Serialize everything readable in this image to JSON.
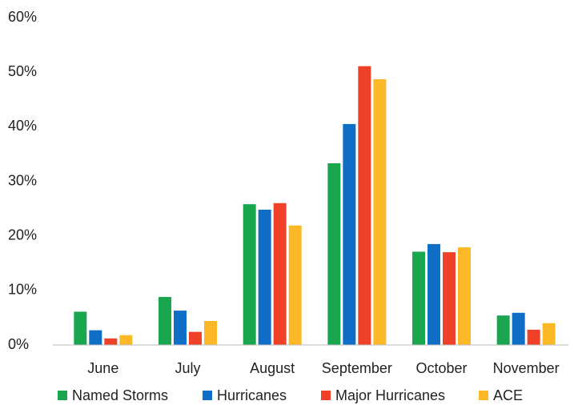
{
  "chart_data": {
    "type": "bar",
    "categories": [
      "June",
      "July",
      "August",
      "September",
      "October",
      "November"
    ],
    "series": [
      {
        "name": "Named Storms",
        "color": "#1aa64f",
        "values": [
          6.1,
          8.8,
          25.8,
          33.3,
          17.1,
          5.4
        ]
      },
      {
        "name": "Hurricanes",
        "color": "#0f6fc6",
        "values": [
          2.7,
          6.3,
          24.8,
          40.5,
          18.5,
          5.9
        ]
      },
      {
        "name": "Major Hurricanes",
        "color": "#ee4128",
        "values": [
          1.2,
          2.4,
          26.0,
          51.1,
          17.0,
          2.8
        ]
      },
      {
        "name": "ACE",
        "color": "#fdb827",
        "values": [
          1.8,
          4.4,
          21.9,
          48.7,
          17.9,
          4.0
        ]
      }
    ],
    "ylim": [
      0,
      60
    ],
    "yticks": [
      {
        "value": 0,
        "label": "0%"
      },
      {
        "value": 10,
        "label": "10%"
      },
      {
        "value": 20,
        "label": "20%"
      },
      {
        "value": 30,
        "label": "30%"
      },
      {
        "value": 40,
        "label": "40%"
      },
      {
        "value": 50,
        "label": "50%"
      },
      {
        "value": 60,
        "label": "60%"
      }
    ],
    "grid": false,
    "legend": "bottom"
  }
}
